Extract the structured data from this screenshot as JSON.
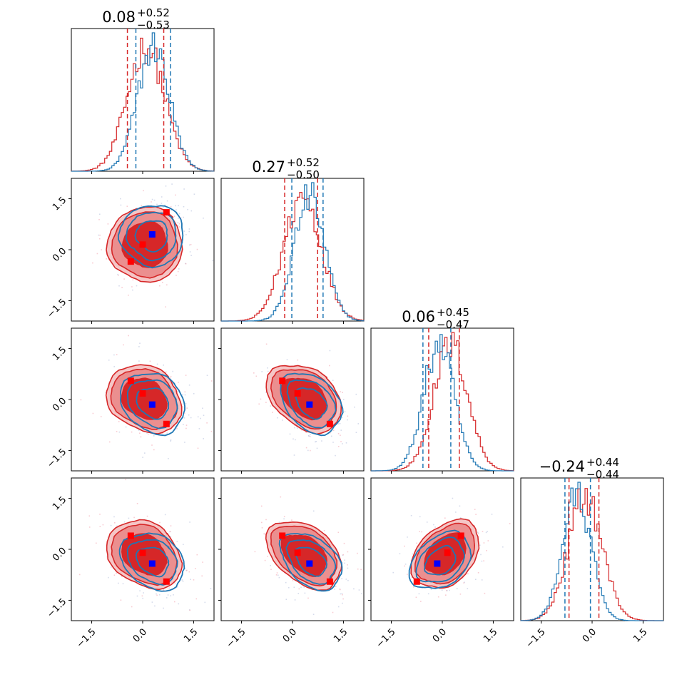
{
  "chart_data": {
    "type": "corner",
    "n_params": 4,
    "axis_range": [
      -2.1,
      2.1
    ],
    "ticks": [
      -1.5,
      0.0,
      1.5
    ],
    "tick_labels": [
      "−1.5",
      "0.0",
      "1.5"
    ],
    "colors": {
      "series_a": "#d62728",
      "series_b": "#1f77b4",
      "truth": "#0000ff",
      "markers": "#ff0000"
    },
    "series": [
      {
        "name": "red",
        "color": "#d62728"
      },
      {
        "name": "blue",
        "color": "#1f77b4"
      }
    ],
    "titles": [
      {
        "value": "0.08",
        "upper": "+0.52",
        "lower": "−0.53"
      },
      {
        "value": "0.27",
        "upper": "+0.52",
        "lower": "−0.50"
      },
      {
        "value": "0.06",
        "upper": "+0.45",
        "lower": "−0.47"
      },
      {
        "value": "−0.24",
        "upper": "+0.44",
        "lower": "−0.44"
      }
    ],
    "marginals": [
      {
        "red": {
          "mean": 0.1,
          "sd": 0.55
        },
        "blue": {
          "mean": 0.32,
          "sd": 0.47
        },
        "red_quantiles": [
          -0.45,
          0.62
        ],
        "blue_quantiles": [
          -0.2,
          0.82
        ]
      },
      {
        "red": {
          "mean": 0.3,
          "sd": 0.55
        },
        "blue": {
          "mean": 0.5,
          "sd": 0.45
        },
        "red_quantiles": [
          -0.23,
          0.74
        ],
        "blue_quantiles": [
          -0.02,
          0.9
        ]
      },
      {
        "red": {
          "mean": 0.25,
          "sd": 0.5
        },
        "blue": {
          "mean": -0.1,
          "sd": 0.45
        },
        "red_quantiles": [
          -0.4,
          0.5
        ],
        "blue_quantiles": [
          -0.57,
          0.25
        ]
      },
      {
        "red": {
          "mean": -0.2,
          "sd": 0.5
        },
        "blue": {
          "mean": -0.45,
          "sd": 0.42
        },
        "red_quantiles": [
          -0.68,
          0.2
        ],
        "blue_quantiles": [
          -0.8,
          -0.05
        ]
      }
    ],
    "pairs": [
      {
        "row": 1,
        "col": 0,
        "red_center": [
          0.08,
          0.15
        ],
        "blue_center": [
          0.28,
          0.42
        ],
        "red_rho": 0.0,
        "blue_rho": 0.0,
        "red_points": [
          [
            0.7,
            1.1
          ],
          [
            0.0,
            0.15
          ],
          [
            -0.35,
            -0.35
          ]
        ],
        "blue_point": [
          0.28,
          0.45
        ]
      },
      {
        "row": 2,
        "col": 0,
        "red_center": [
          0.05,
          0.02
        ],
        "blue_center": [
          0.3,
          -0.1
        ],
        "red_rho": -0.2,
        "blue_rho": -0.2,
        "red_points": [
          [
            -0.35,
            0.55
          ],
          [
            0.0,
            0.18
          ],
          [
            0.7,
            -0.72
          ]
        ],
        "blue_point": [
          0.28,
          -0.15
        ]
      },
      {
        "row": 2,
        "col": 1,
        "red_center": [
          0.35,
          0.05
        ],
        "blue_center": [
          0.55,
          -0.1
        ],
        "red_rho": -0.35,
        "blue_rho": -0.35,
        "red_points": [
          [
            -0.3,
            0.55
          ],
          [
            0.15,
            0.18
          ],
          [
            1.1,
            -0.72
          ]
        ],
        "blue_point": [
          0.5,
          -0.15
        ]
      },
      {
        "row": 3,
        "col": 0,
        "red_center": [
          0.05,
          -0.15
        ],
        "blue_center": [
          0.3,
          -0.35
        ],
        "red_rho": -0.25,
        "blue_rho": -0.25,
        "red_points": [
          [
            -0.35,
            0.4
          ],
          [
            0.0,
            -0.1
          ],
          [
            0.7,
            -0.95
          ]
        ],
        "blue_point": [
          0.28,
          -0.42
        ]
      },
      {
        "row": 3,
        "col": 1,
        "red_center": [
          0.35,
          -0.15
        ],
        "blue_center": [
          0.55,
          -0.35
        ],
        "red_rho": -0.4,
        "blue_rho": -0.4,
        "red_points": [
          [
            -0.3,
            0.4
          ],
          [
            0.15,
            -0.1
          ],
          [
            1.1,
            -0.95
          ]
        ],
        "blue_point": [
          0.5,
          -0.42
        ]
      },
      {
        "row": 3,
        "col": 2,
        "red_center": [
          0.1,
          -0.15
        ],
        "blue_center": [
          -0.05,
          -0.35
        ],
        "red_rho": 0.35,
        "blue_rho": 0.35,
        "red_points": [
          [
            -0.75,
            -0.95
          ],
          [
            0.15,
            -0.1
          ],
          [
            0.55,
            0.4
          ]
        ],
        "blue_point": [
          -0.15,
          -0.42
        ]
      }
    ]
  }
}
